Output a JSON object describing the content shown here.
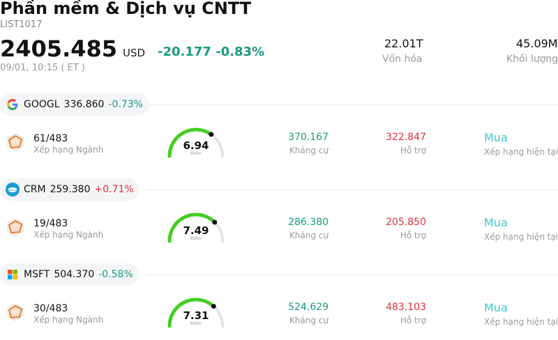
{
  "header": {
    "title": "Phần mềm & Dịch vụ CNTT",
    "code": "LIST1017",
    "price": "2405.485",
    "currency": "USD",
    "change": "-20.177 -0.83%",
    "time": "09/01, 10:15  ( ET )",
    "market_cap_value": "22.01T",
    "market_cap_label": "Vốn hóa",
    "volume_value": "45.09M",
    "volume_label": "Khối lượng"
  },
  "colors": {
    "up": "#e0303c",
    "down": "#1a9a7d",
    "rating": "#40c8c8",
    "gauge": "#44cc22"
  },
  "stocks": [
    {
      "ticker": "GOOGL",
      "price": "336.860",
      "change": "-0.73%",
      "direction": "down",
      "logo": "google-icon",
      "rank": "61/483",
      "rank_label": "Xếp hạng Ngành",
      "score": "6.94",
      "score_value": 6.94,
      "score_label": "Điểm",
      "resistance": "370.167",
      "resistance_label": "Kháng cự",
      "support": "322.847",
      "support_label": "Hỗ trợ",
      "rating": "Mua",
      "rating_label": "Xếp hạng hiện tại"
    },
    {
      "ticker": "CRM",
      "price": "259.380",
      "change": "+0.71%",
      "direction": "up",
      "logo": "salesforce-icon",
      "rank": "19/483",
      "rank_label": "Xếp hạng Ngành",
      "score": "7.49",
      "score_value": 7.49,
      "score_label": "Điểm",
      "resistance": "286.380",
      "resistance_label": "Kháng cự",
      "support": "205.850",
      "support_label": "Hỗ trợ",
      "rating": "Mua",
      "rating_label": "Xếp hạng hiện tại"
    },
    {
      "ticker": "MSFT",
      "price": "504.370",
      "change": "-0.58%",
      "direction": "down",
      "logo": "microsoft-icon",
      "rank": "30/483",
      "rank_label": "Xếp hạng Ngành",
      "score": "7.31",
      "score_value": 7.31,
      "score_label": "Điểm",
      "resistance": "524.629",
      "resistance_label": "Kháng cự",
      "support": "483.103",
      "support_label": "Hỗ trợ",
      "rating": "Mua",
      "rating_label": "Xếp hạng hiện tại"
    }
  ]
}
